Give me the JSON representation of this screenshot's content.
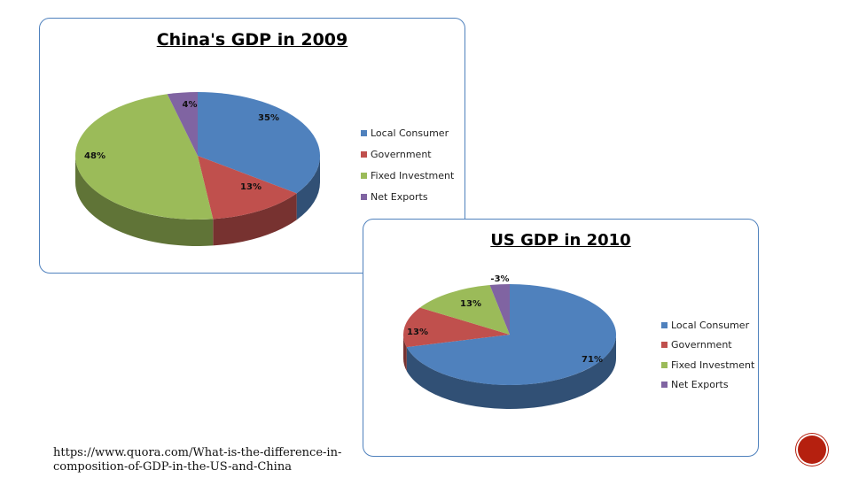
{
  "charts": {
    "china": {
      "title": "China's GDP in 2009"
    },
    "us": {
      "title": "US GDP in 2010"
    }
  },
  "chart_data": [
    {
      "type": "pie",
      "title": "China's GDP in 2009",
      "categories": [
        "Local Consumer",
        "Government",
        "Fixed Investment",
        "Net Exports"
      ],
      "values": [
        35,
        13,
        48,
        4
      ],
      "labels": [
        "35%",
        "13%",
        "48%",
        "4%"
      ],
      "colors": [
        "#4f81bd",
        "#c0504d",
        "#9bbb59",
        "#8064a2"
      ],
      "legend": "right"
    },
    {
      "type": "pie",
      "title": "US GDP in 2010",
      "categories": [
        "Local Consumer",
        "Government",
        "Fixed Investment",
        "Net Exports"
      ],
      "values": [
        71,
        13,
        13,
        3
      ],
      "labels": [
        "71%",
        "13%",
        "13%",
        "-3%"
      ],
      "colors": [
        "#4f81bd",
        "#c0504d",
        "#9bbb59",
        "#8064a2"
      ],
      "legend": "right"
    }
  ],
  "source": {
    "line1": "https://www.quora.com/What-is-the-difference-in-",
    "line2": "composition-of-GDP-in-the-US-and-China"
  }
}
